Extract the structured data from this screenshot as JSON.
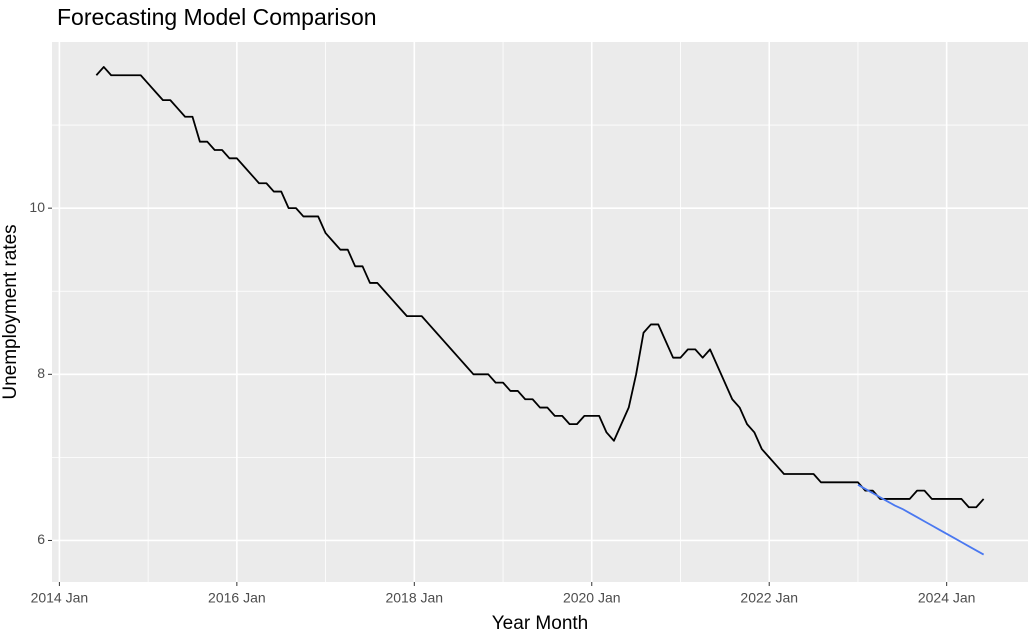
{
  "chart_data": {
    "type": "line",
    "title": "Forecasting Model Comparison",
    "x_label": "Year Month",
    "y_label": "Unemployment rates",
    "x": [
      "2014 Jun",
      "2014 Jul",
      "2014 Aug",
      "2014 Sep",
      "2014 Oct",
      "2014 Nov",
      "2014 Dec",
      "2015 Jan",
      "2015 Feb",
      "2015 Mar",
      "2015 Apr",
      "2015 May",
      "2015 Jun",
      "2015 Jul",
      "2015 Aug",
      "2015 Sep",
      "2015 Oct",
      "2015 Nov",
      "2015 Dec",
      "2016 Jan",
      "2016 Feb",
      "2016 Mar",
      "2016 Apr",
      "2016 May",
      "2016 Jun",
      "2016 Jul",
      "2016 Aug",
      "2016 Sep",
      "2016 Oct",
      "2016 Nov",
      "2016 Dec",
      "2017 Jan",
      "2017 Feb",
      "2017 Mar",
      "2017 Apr",
      "2017 May",
      "2017 Jun",
      "2017 Jul",
      "2017 Aug",
      "2017 Sep",
      "2017 Oct",
      "2017 Nov",
      "2017 Dec",
      "2018 Jan",
      "2018 Feb",
      "2018 Mar",
      "2018 Apr",
      "2018 May",
      "2018 Jun",
      "2018 Jul",
      "2018 Aug",
      "2018 Sep",
      "2018 Oct",
      "2018 Nov",
      "2018 Dec",
      "2019 Jan",
      "2019 Feb",
      "2019 Mar",
      "2019 Apr",
      "2019 May",
      "2019 Jun",
      "2019 Jul",
      "2019 Aug",
      "2019 Sep",
      "2019 Oct",
      "2019 Nov",
      "2019 Dec",
      "2020 Jan",
      "2020 Feb",
      "2020 Mar",
      "2020 Apr",
      "2020 May",
      "2020 Jun",
      "2020 Jul",
      "2020 Aug",
      "2020 Sep",
      "2020 Oct",
      "2020 Nov",
      "2020 Dec",
      "2021 Jan",
      "2021 Feb",
      "2021 Mar",
      "2021 Apr",
      "2021 May",
      "2021 Jun",
      "2021 Jul",
      "2021 Aug",
      "2021 Sep",
      "2021 Oct",
      "2021 Nov",
      "2021 Dec",
      "2022 Jan",
      "2022 Feb",
      "2022 Mar",
      "2022 Apr",
      "2022 May",
      "2022 Jun",
      "2022 Jul",
      "2022 Aug",
      "2022 Sep",
      "2022 Oct",
      "2022 Nov",
      "2022 Dec",
      "2023 Jan",
      "2023 Feb",
      "2023 Mar",
      "2023 Apr",
      "2023 May",
      "2023 Jun",
      "2023 Jul",
      "2023 Aug",
      "2023 Sep",
      "2023 Oct",
      "2023 Nov",
      "2023 Dec",
      "2024 Jan",
      "2024 Feb",
      "2024 Mar",
      "2024 Apr",
      "2024 May",
      "2024 Jun"
    ],
    "series": [
      {
        "color": "#000000",
        "values": [
          11.6,
          11.7,
          11.6,
          11.6,
          11.6,
          11.6,
          11.6,
          11.5,
          11.4,
          11.3,
          11.3,
          11.2,
          11.1,
          11.1,
          10.8,
          10.8,
          10.7,
          10.7,
          10.6,
          10.6,
          10.5,
          10.4,
          10.3,
          10.3,
          10.2,
          10.2,
          10.0,
          10.0,
          9.9,
          9.9,
          9.9,
          9.7,
          9.6,
          9.5,
          9.5,
          9.3,
          9.3,
          9.1,
          9.1,
          9.0,
          8.9,
          8.8,
          8.7,
          8.7,
          8.7,
          8.6,
          8.5,
          8.4,
          8.3,
          8.2,
          8.1,
          8.0,
          8.0,
          8.0,
          7.9,
          7.9,
          7.8,
          7.8,
          7.7,
          7.7,
          7.6,
          7.6,
          7.5,
          7.5,
          7.4,
          7.4,
          7.5,
          7.5,
          7.5,
          7.3,
          7.2,
          7.4,
          7.6,
          8.0,
          8.5,
          8.6,
          8.6,
          8.4,
          8.2,
          8.2,
          8.3,
          8.3,
          8.2,
          8.3,
          8.1,
          7.9,
          7.7,
          7.6,
          7.4,
          7.3,
          7.1,
          7.0,
          6.9,
          6.8,
          6.8,
          6.8,
          6.8,
          6.8,
          6.7,
          6.7,
          6.7,
          6.7,
          6.7,
          6.7,
          6.6,
          6.6,
          6.5,
          6.5,
          6.5,
          6.5,
          6.5,
          6.6,
          6.6,
          6.5,
          6.5,
          6.5,
          6.5,
          6.5,
          6.4,
          6.4,
          6.5
        ]
      },
      {
        "color": "#4a78f0",
        "values": [
          null,
          null,
          null,
          null,
          null,
          null,
          null,
          null,
          null,
          null,
          null,
          null,
          null,
          null,
          null,
          null,
          null,
          null,
          null,
          null,
          null,
          null,
          null,
          null,
          null,
          null,
          null,
          null,
          null,
          null,
          null,
          null,
          null,
          null,
          null,
          null,
          null,
          null,
          null,
          null,
          null,
          null,
          null,
          null,
          null,
          null,
          null,
          null,
          null,
          null,
          null,
          null,
          null,
          null,
          null,
          null,
          null,
          null,
          null,
          null,
          null,
          null,
          null,
          null,
          null,
          null,
          null,
          null,
          null,
          null,
          null,
          null,
          null,
          null,
          null,
          null,
          null,
          null,
          null,
          null,
          null,
          null,
          null,
          null,
          null,
          null,
          null,
          null,
          null,
          null,
          null,
          null,
          null,
          null,
          null,
          null,
          null,
          null,
          null,
          null,
          null,
          null,
          null,
          6.67,
          6.62,
          6.57,
          6.52,
          6.47,
          6.42,
          6.38,
          6.33,
          6.28,
          6.23,
          6.18,
          6.13,
          6.08,
          6.03,
          5.98,
          5.93,
          5.88,
          5.83
        ]
      }
    ],
    "xlim": [
      "2013 Dec",
      "2024 Dec"
    ],
    "xticks": [
      "2014 Jan",
      "2016 Jan",
      "2018 Jan",
      "2020 Jan",
      "2022 Jan",
      "2024 Jan"
    ],
    "minor_xticks": [
      "2015 Jan",
      "2017 Jan",
      "2019 Jan",
      "2021 Jan",
      "2023 Jan"
    ],
    "ylim": [
      5.5,
      12
    ],
    "yticks": [
      6,
      8,
      10
    ],
    "minor_yticks": [
      7,
      9,
      11
    ],
    "grid": true
  }
}
